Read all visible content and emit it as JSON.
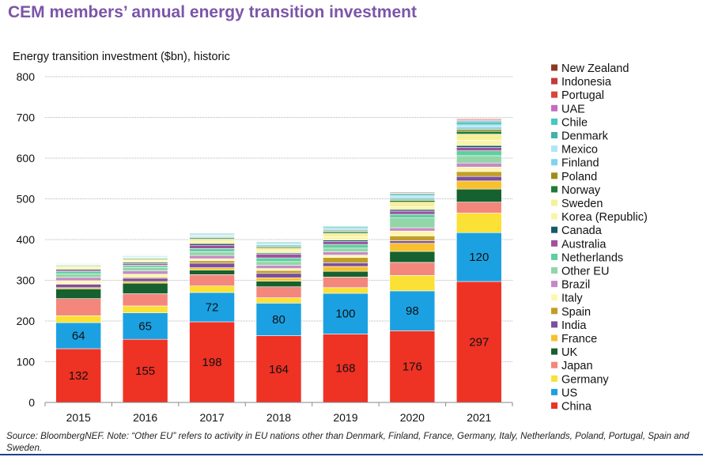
{
  "title": "CEM members’ annual energy transition investment",
  "source": "Source: BloombergNEF.  Note: “Other EU” refers to activity in EU nations other than Denmark, Finland, France, Germany, Italy, Netherlands, Poland, Portugal, Spain and Sweden.",
  "chart_data": {
    "type": "bar",
    "stacked": true,
    "title": "CEM members’ annual energy transition investment",
    "ylabel": "Energy transition investment ($bn), historic",
    "xlabel": "",
    "ylim": [
      0,
      800
    ],
    "yticks": [
      0,
      100,
      200,
      300,
      400,
      500,
      600,
      700,
      800
    ],
    "grid": true,
    "legend_position": "right",
    "categories": [
      "2015",
      "2016",
      "2017",
      "2018",
      "2019",
      "2020",
      "2021"
    ],
    "series": [
      {
        "name": "China",
        "color": "#ee3224",
        "values": [
          132,
          155,
          198,
          164,
          168,
          176,
          297
        ],
        "labeled": true
      },
      {
        "name": "US",
        "color": "#1ba1e2",
        "values": [
          64,
          65,
          72,
          80,
          100,
          98,
          120
        ],
        "labeled": true
      },
      {
        "name": "Germany",
        "color": "#fbe036",
        "values": [
          17,
          17,
          16,
          13,
          14,
          38,
          48
        ]
      },
      {
        "name": "Japan",
        "color": "#f3877c",
        "values": [
          42,
          30,
          28,
          27,
          26,
          32,
          27
        ]
      },
      {
        "name": "UK",
        "color": "#16612f",
        "values": [
          24,
          26,
          11,
          14,
          14,
          27,
          32
        ]
      },
      {
        "name": "France",
        "color": "#f7c12e",
        "values": [
          3,
          4,
          6,
          8,
          12,
          20,
          20
        ]
      },
      {
        "name": "India",
        "color": "#7c4f9e",
        "values": [
          8,
          8,
          11,
          11,
          9,
          6,
          11
        ]
      },
      {
        "name": "Spain",
        "color": "#c19f27",
        "values": [
          2,
          3,
          6,
          7,
          13,
          12,
          12
        ]
      },
      {
        "name": "Italy",
        "color": "#fff6b0",
        "values": [
          7,
          7,
          5,
          5,
          6,
          12,
          11
        ]
      },
      {
        "name": "Brazil",
        "color": "#c58ac6",
        "values": [
          8,
          8,
          8,
          8,
          8,
          8,
          10
        ]
      },
      {
        "name": "Other EU",
        "color": "#92d6a8",
        "values": [
          9,
          9,
          9,
          9,
          9,
          24,
          18
        ]
      },
      {
        "name": "Netherlands",
        "color": "#5fcfa0",
        "values": [
          5,
          5,
          8,
          9,
          9,
          9,
          12
        ]
      },
      {
        "name": "Australia",
        "color": "#a0509d",
        "values": [
          3,
          4,
          8,
          9,
          7,
          8,
          8
        ]
      },
      {
        "name": "Canada",
        "color": "#15596a",
        "values": [
          3,
          3,
          4,
          3,
          4,
          4,
          5
        ]
      },
      {
        "name": "Korea (Republic)",
        "color": "#fbf4a9",
        "values": [
          5,
          5,
          6,
          6,
          8,
          7,
          13
        ]
      },
      {
        "name": "Sweden",
        "color": "#f6f09c",
        "values": [
          3,
          3,
          5,
          6,
          8,
          11,
          15
        ]
      },
      {
        "name": "Norway",
        "color": "#1e7b38",
        "values": [
          2,
          2,
          3,
          3,
          3,
          4,
          7
        ]
      },
      {
        "name": "Poland",
        "color": "#9e8d17",
        "values": [
          1,
          1,
          2,
          2,
          3,
          3,
          5
        ]
      },
      {
        "name": "Finland",
        "color": "#7ed4f2",
        "values": [
          1,
          1,
          2,
          3,
          4,
          5,
          6
        ]
      },
      {
        "name": "Mexico",
        "color": "#aee6f6",
        "values": [
          2,
          3,
          3,
          3,
          3,
          4,
          5
        ]
      },
      {
        "name": "Denmark",
        "color": "#3db3a9",
        "values": [
          1,
          1,
          2,
          2,
          3,
          4,
          5
        ]
      },
      {
        "name": "Chile",
        "color": "#45c7c4",
        "values": [
          1,
          1,
          2,
          2,
          2,
          2,
          4
        ]
      },
      {
        "name": "UAE",
        "color": "#c66bbf",
        "values": [
          1,
          1,
          1,
          1,
          1,
          1,
          2
        ]
      },
      {
        "name": "Portugal",
        "color": "#db4438",
        "values": [
          1,
          1,
          1,
          1,
          1,
          2,
          2
        ]
      },
      {
        "name": "Indonesia",
        "color": "#c23c3c",
        "values": [
          1,
          1,
          1,
          1,
          1,
          1,
          2
        ]
      },
      {
        "name": "New Zealand",
        "color": "#8b3a22",
        "values": [
          1,
          1,
          1,
          1,
          1,
          1,
          1
        ]
      }
    ]
  }
}
